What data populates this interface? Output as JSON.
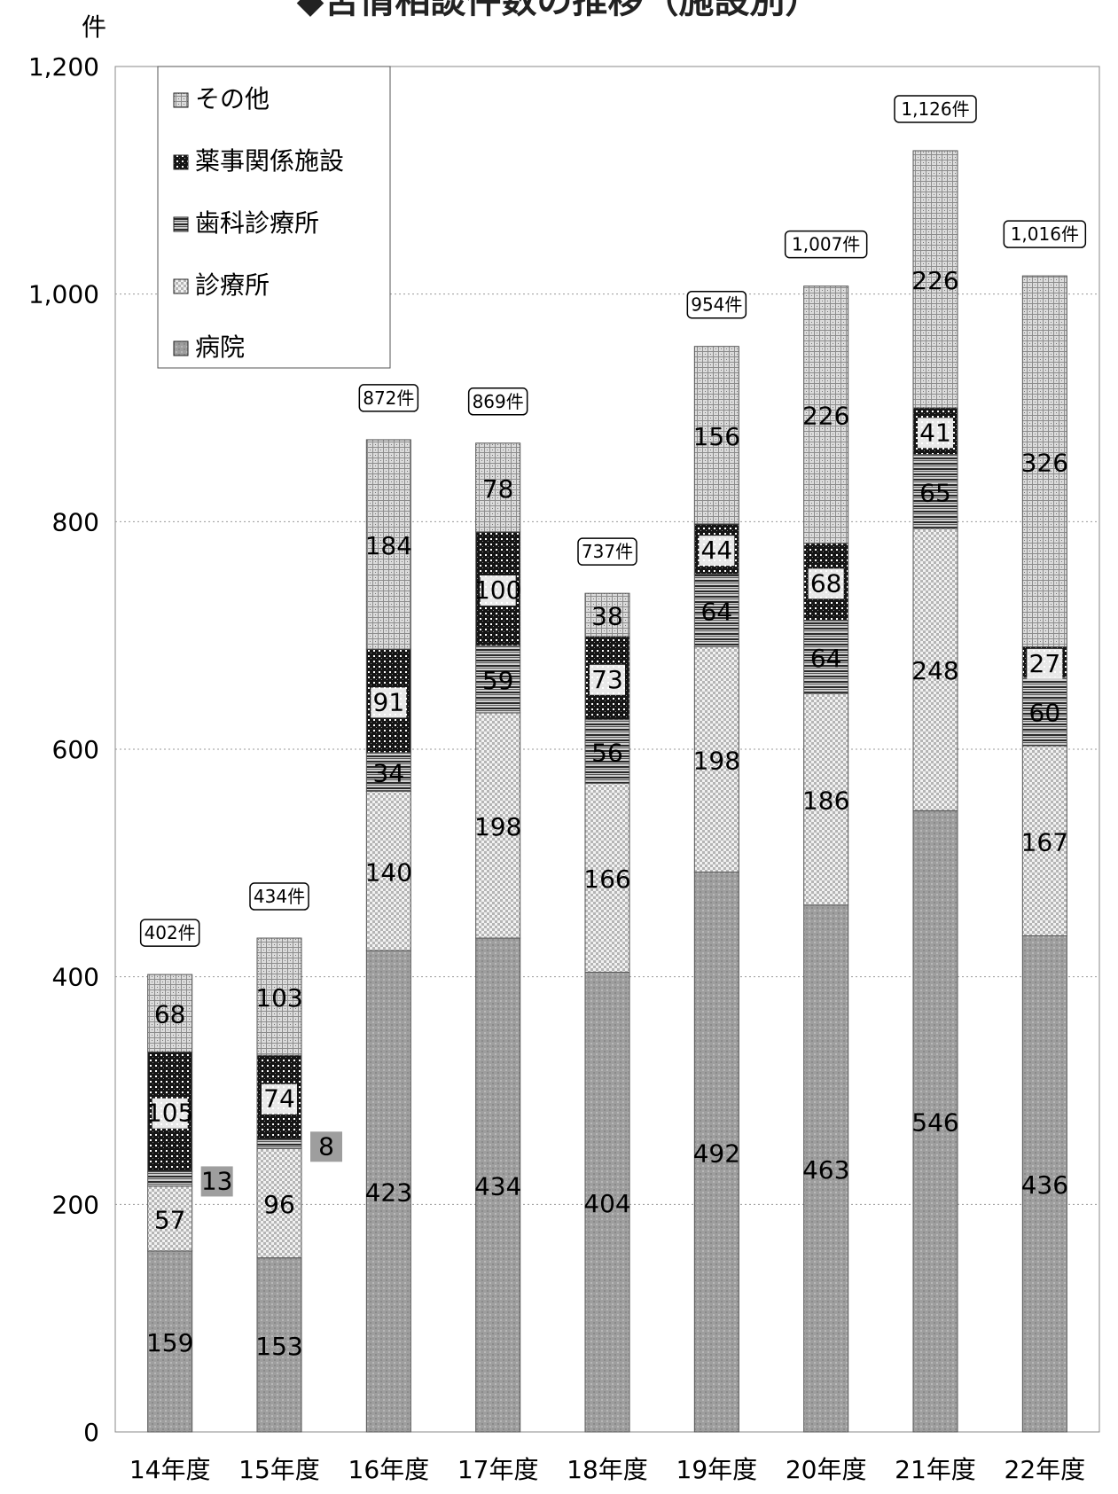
{
  "title": "◆苦情相談件数の推移（施設別）",
  "chart_data": {
    "type": "bar",
    "stacked": true,
    "unit_label": "件",
    "categories": [
      "14年度",
      "15年度",
      "16年度",
      "17年度",
      "18年度",
      "19年度",
      "20年度",
      "21年度",
      "22年度"
    ],
    "series": [
      {
        "name": "病院",
        "values": [
          159,
          153,
          423,
          434,
          404,
          492,
          463,
          546,
          436
        ],
        "color": "#a9a9a9",
        "pattern": "solid-gray"
      },
      {
        "name": "診療所",
        "values": [
          57,
          96,
          140,
          198,
          166,
          198,
          186,
          248,
          167
        ],
        "color": "#e2e2e2",
        "pattern": "checker"
      },
      {
        "name": "歯科診療所",
        "values": [
          13,
          8,
          34,
          59,
          56,
          64,
          64,
          65,
          60
        ],
        "color": "#4a4a4a",
        "pattern": "horizontal-lines"
      },
      {
        "name": "薬事関係施設",
        "values": [
          105,
          74,
          91,
          100,
          73,
          44,
          68,
          41,
          27
        ],
        "color": "#1a1a1a",
        "pattern": "dark-dots"
      },
      {
        "name": "その他",
        "values": [
          68,
          103,
          184,
          78,
          38,
          156,
          226,
          226,
          326
        ],
        "color": "#c8c8c8",
        "pattern": "light-grid"
      }
    ],
    "totals": [
      "402件",
      "434件",
      "872件",
      "869件",
      "737件",
      "954件",
      "1,007件",
      "1,126件",
      "1,016件"
    ],
    "yticks": [
      "0",
      "200",
      "400",
      "600",
      "800",
      "1,000",
      "1,200"
    ],
    "ylim": [
      0,
      1200
    ],
    "legend_position": "top-left",
    "legend_order": [
      "その他",
      "薬事関係施設",
      "歯科診療所",
      "診療所",
      "病院"
    ],
    "grid": true
  }
}
